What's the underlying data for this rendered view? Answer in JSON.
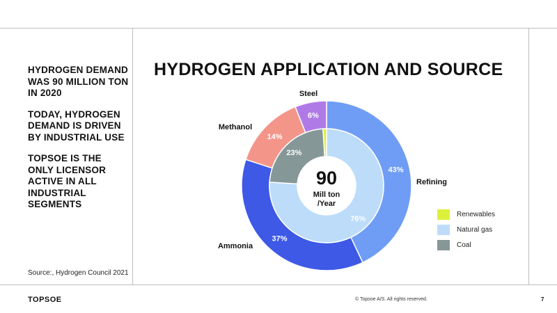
{
  "left_panel": {
    "statements": [
      "HYDROGEN DEMAND WAS 90 MILLION TON IN 2020",
      "TODAY, HYDROGEN DEMAND IS DRIVEN BY INDUSTRIAL USE",
      "TOPSOE IS THE ONLY LICENSOR ACTIVE IN ALL INDUSTRIAL SEGMENTS"
    ],
    "source": "Source:, Hydrogen Council 2021"
  },
  "footer": {
    "brand": "TOPSOE",
    "copyright": "© Topsoe A/S. All rights reserved.",
    "page": "7"
  },
  "chart_data": {
    "type": "pie",
    "title": "HYDROGEN APPLICATION AND SOURCE",
    "center_value": "90",
    "center_unit": "Mill ton\n/Year",
    "outer_ring": {
      "series": [
        {
          "name": "Refining",
          "value": 43,
          "label": "43%",
          "color": "#6f9df5"
        },
        {
          "name": "Ammonia",
          "value": 37,
          "label": "37%",
          "color": "#3d59e6"
        },
        {
          "name": "Methanol",
          "value": 14,
          "label": "14%",
          "color": "#f4958a"
        },
        {
          "name": "Steel",
          "value": 6,
          "label": "6%",
          "color": "#b07ae6"
        }
      ]
    },
    "inner_ring": {
      "series": [
        {
          "name": "Natural gas",
          "value": 76,
          "label": "76%",
          "color": "#bcdcfa"
        },
        {
          "name": "Coal",
          "value": 23,
          "label": "23%",
          "color": "#869797"
        },
        {
          "name": "Renewables",
          "value": 1,
          "label": "",
          "color": "#dcf03c"
        }
      ]
    },
    "legend": {
      "placement": "right",
      "items": [
        {
          "label": "Renewables",
          "color": "#dcf03c"
        },
        {
          "label": "Natural gas",
          "color": "#bcdcfa"
        },
        {
          "label": "Coal",
          "color": "#869797"
        }
      ]
    }
  }
}
